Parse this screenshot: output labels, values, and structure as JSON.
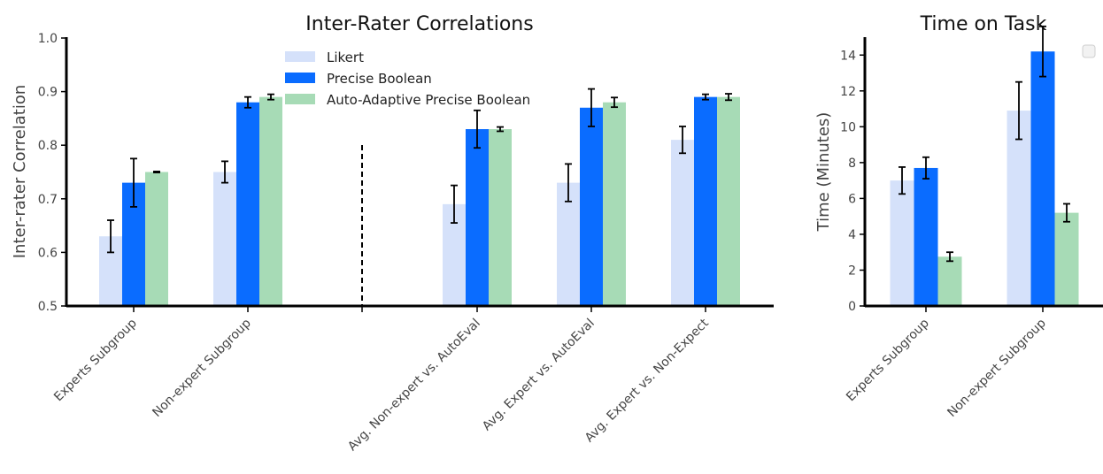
{
  "colors": {
    "likert": "#d5e1fa",
    "precise_boolean": "#0a6cff",
    "auto_adaptive": "#a7dbb6",
    "axis": "#000000",
    "error_bar": "#000000"
  },
  "chart_data": [
    {
      "type": "bar",
      "title": "Inter-Rater Correlations",
      "ylabel": "Inter-rater Correlation",
      "xlabel": "",
      "ylim": [
        0.5,
        1.0
      ],
      "yticks": [
        "0.5",
        "0.6",
        "0.7",
        "0.8",
        "0.9",
        "1.0"
      ],
      "categories": [
        "Experts Subgroup",
        "Non-expert Subgroup",
        "",
        "Avg. Non-expert vs. AutoEval",
        "Avg. Expert vs. AutoEval",
        "Avg. Expert vs. Non-Expect"
      ],
      "separator_after_category": 2,
      "series": [
        {
          "name": "Likert",
          "values": [
            0.63,
            0.75,
            null,
            0.69,
            0.73,
            0.81
          ],
          "errors": [
            0.03,
            0.02,
            null,
            0.035,
            0.035,
            0.025
          ]
        },
        {
          "name": "Precise Boolean",
          "values": [
            0.73,
            0.88,
            null,
            0.83,
            0.87,
            0.89
          ],
          "errors": [
            0.045,
            0.01,
            null,
            0.035,
            0.035,
            0.005
          ]
        },
        {
          "name": "Auto-Adaptive Precise Boolean",
          "values": [
            0.75,
            0.89,
            null,
            0.83,
            0.88,
            0.89
          ],
          "errors": [
            0.001,
            0.005,
            null,
            0.004,
            0.009,
            0.006
          ]
        }
      ],
      "grid": false,
      "legend": "top-left"
    },
    {
      "type": "bar",
      "title": "Time on Task",
      "ylabel": "Time (Minutes)",
      "xlabel": "",
      "ylim": [
        0,
        15
      ],
      "yticks": [
        "0",
        "2",
        "4",
        "6",
        "8",
        "10",
        "12",
        "14"
      ],
      "categories": [
        "Experts Subgroup",
        "Non-expert Subgroup"
      ],
      "series": [
        {
          "name": "Likert",
          "values": [
            7.0,
            10.9
          ],
          "errors": [
            0.75,
            1.6
          ]
        },
        {
          "name": "Precise Boolean",
          "values": [
            7.7,
            14.2
          ],
          "errors": [
            0.6,
            1.4
          ]
        },
        {
          "name": "Auto-Adaptive Precise Boolean",
          "values": [
            2.75,
            5.2
          ],
          "errors": [
            0.25,
            0.5
          ]
        }
      ],
      "grid": false,
      "legend": "top-right"
    }
  ]
}
